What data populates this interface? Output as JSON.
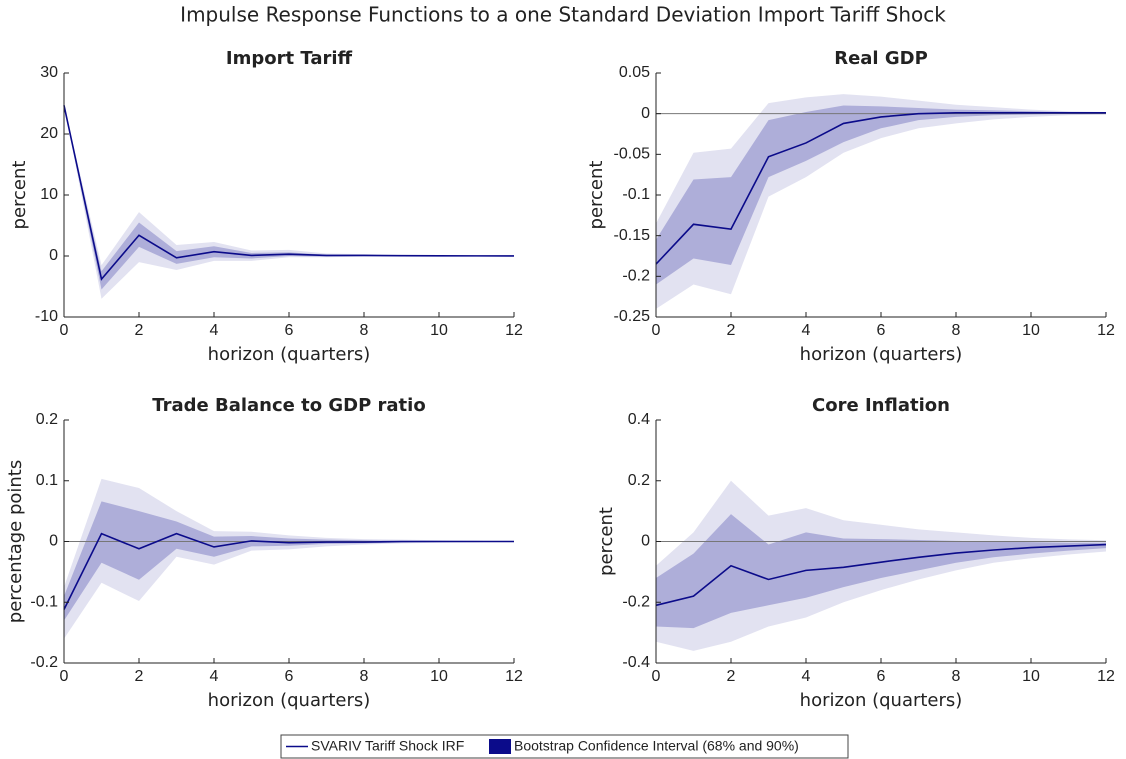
{
  "title": "Impulse Response Functions to a one Standard Deviation Import Tariff Shock",
  "legend": [
    {
      "name": "SVARIV Tariff Shock IRF",
      "color": "#0b0b8a"
    },
    {
      "name": "Bootstrap Confidence Interval (68% and 90%)",
      "color": "#0b0b8a",
      "colors": [
        "#aeaed9",
        "#e2e2f1"
      ]
    }
  ],
  "chart_data": [
    {
      "type": "line",
      "title": "Import Tariff",
      "xlabel": "horizon (quarters)",
      "ylabel": "percent",
      "x": [
        0,
        1,
        2,
        3,
        4,
        5,
        6,
        7,
        8,
        9,
        10,
        11,
        12
      ],
      "xlim": [
        0,
        12
      ],
      "xticks": [
        0,
        2,
        4,
        6,
        8,
        10,
        12
      ],
      "ylim": [
        -10,
        30
      ],
      "yticks": [
        -10,
        0,
        10,
        20,
        30
      ],
      "zero_line": false,
      "irf": [
        24.7,
        -3.8,
        3.4,
        -0.3,
        0.7,
        0.1,
        0.3,
        0.1,
        0.1,
        0.05,
        0.03,
        0.02,
        0.01
      ],
      "ci68_lower": [
        24.7,
        -5.5,
        1.5,
        -1.3,
        -0.2,
        -0.4,
        0,
        -0.1,
        0,
        0,
        0,
        0,
        0
      ],
      "ci68_upper": [
        24.7,
        -2.5,
        5.5,
        0.8,
        1.6,
        0.5,
        0.6,
        0.2,
        0.2,
        0.1,
        0.05,
        0.03,
        0.02
      ],
      "ci90_lower": [
        24.7,
        -7,
        -1,
        -2.3,
        -0.8,
        -0.8,
        -0.2,
        -0.2,
        -0.1,
        -0.05,
        -0.03,
        -0.02,
        -0.01
      ],
      "ci90_upper": [
        24.7,
        -1.5,
        7.2,
        1.8,
        2.3,
        0.9,
        1,
        0.4,
        0.3,
        0.15,
        0.1,
        0.05,
        0.03
      ]
    },
    {
      "type": "line",
      "title": "Real GDP",
      "xlabel": "horizon (quarters)",
      "ylabel": "percent",
      "x": [
        0,
        1,
        2,
        3,
        4,
        5,
        6,
        7,
        8,
        9,
        10,
        11,
        12
      ],
      "xlim": [
        0,
        12
      ],
      "xticks": [
        0,
        2,
        4,
        6,
        8,
        10,
        12
      ],
      "ylim": [
        -0.25,
        0.05
      ],
      "yticks": [
        -0.25,
        -0.2,
        -0.15,
        -0.1,
        -0.05,
        0,
        0.05
      ],
      "zero_line": true,
      "irf": [
        -0.185,
        -0.136,
        -0.142,
        -0.053,
        -0.036,
        -0.012,
        -0.004,
        0,
        0.001,
        0.001,
        0.001,
        0.001,
        0.001
      ],
      "ci68_lower": [
        -0.21,
        -0.178,
        -0.186,
        -0.078,
        -0.058,
        -0.035,
        -0.018,
        -0.008,
        -0.004,
        -0.002,
        -0.001,
        0,
        0
      ],
      "ci68_upper": [
        -0.155,
        -0.081,
        -0.078,
        -0.008,
        0.002,
        0.01,
        0.009,
        0.007,
        0.005,
        0.004,
        0.003,
        0.002,
        0.001
      ],
      "ci90_lower": [
        -0.24,
        -0.21,
        -0.222,
        -0.102,
        -0.078,
        -0.048,
        -0.03,
        -0.018,
        -0.012,
        -0.007,
        -0.004,
        -0.002,
        -0.001
      ],
      "ci90_upper": [
        -0.135,
        -0.048,
        -0.043,
        0.013,
        0.02,
        0.024,
        0.021,
        0.016,
        0.011,
        0.008,
        0.005,
        0.003,
        0.002
      ]
    },
    {
      "type": "line",
      "title": "Trade Balance to GDP ratio",
      "xlabel": "horizon (quarters)",
      "ylabel": "percentage points",
      "x": [
        0,
        1,
        2,
        3,
        4,
        5,
        6,
        7,
        8,
        9,
        10,
        11,
        12
      ],
      "xlim": [
        0,
        12
      ],
      "xticks": [
        0,
        2,
        4,
        6,
        8,
        10,
        12
      ],
      "ylim": [
        -0.2,
        0.2
      ],
      "yticks": [
        -0.2,
        -0.1,
        0,
        0.1,
        0.2
      ],
      "zero_line": true,
      "irf": [
        -0.112,
        0.013,
        -0.012,
        0.013,
        -0.009,
        0.001,
        -0.002,
        -0.001,
        -0.001,
        0,
        0,
        0,
        0
      ],
      "ci68_lower": [
        -0.13,
        -0.035,
        -0.063,
        -0.012,
        -0.025,
        -0.008,
        -0.007,
        -0.004,
        -0.003,
        -0.002,
        -0.001,
        -0.001,
        0
      ],
      "ci68_upper": [
        -0.09,
        0.066,
        0.05,
        0.033,
        0.008,
        0.009,
        0.005,
        0.003,
        0.002,
        0.001,
        0.001,
        0.001,
        0
      ],
      "ci90_lower": [
        -0.16,
        -0.068,
        -0.098,
        -0.025,
        -0.038,
        -0.015,
        -0.013,
        -0.008,
        -0.005,
        -0.003,
        -0.002,
        -0.001,
        -0.001
      ],
      "ci90_upper": [
        -0.075,
        0.103,
        0.088,
        0.05,
        0.017,
        0.016,
        0.01,
        0.006,
        0.004,
        0.003,
        0.002,
        0.001,
        0.001
      ]
    },
    {
      "type": "line",
      "title": "Core Inflation",
      "xlabel": "horizon (quarters)",
      "ylabel": "percent",
      "x": [
        0,
        1,
        2,
        3,
        4,
        5,
        6,
        7,
        8,
        9,
        10,
        11,
        12
      ],
      "xlim": [
        0,
        12
      ],
      "xticks": [
        0,
        2,
        4,
        6,
        8,
        10,
        12
      ],
      "ylim": [
        -0.4,
        0.4
      ],
      "yticks": [
        -0.4,
        -0.2,
        0,
        0.2,
        0.4
      ],
      "zero_line": true,
      "irf": [
        -0.21,
        -0.18,
        -0.08,
        -0.125,
        -0.095,
        -0.085,
        -0.068,
        -0.052,
        -0.038,
        -0.028,
        -0.02,
        -0.015,
        -0.01
      ],
      "ci68_lower": [
        -0.28,
        -0.285,
        -0.235,
        -0.21,
        -0.185,
        -0.15,
        -0.12,
        -0.095,
        -0.07,
        -0.052,
        -0.04,
        -0.03,
        -0.022
      ],
      "ci68_upper": [
        -0.12,
        -0.04,
        0.09,
        -0.01,
        0.03,
        0.01,
        0.008,
        0.005,
        0.002,
        0,
        -0.002,
        -0.004,
        -0.004
      ],
      "ci90_lower": [
        -0.33,
        -0.36,
        -0.33,
        -0.28,
        -0.25,
        -0.2,
        -0.16,
        -0.125,
        -0.095,
        -0.07,
        -0.055,
        -0.043,
        -0.033
      ],
      "ci90_upper": [
        -0.08,
        0.03,
        0.2,
        0.085,
        0.11,
        0.07,
        0.055,
        0.04,
        0.03,
        0.02,
        0.012,
        0.007,
        0.004
      ]
    }
  ]
}
